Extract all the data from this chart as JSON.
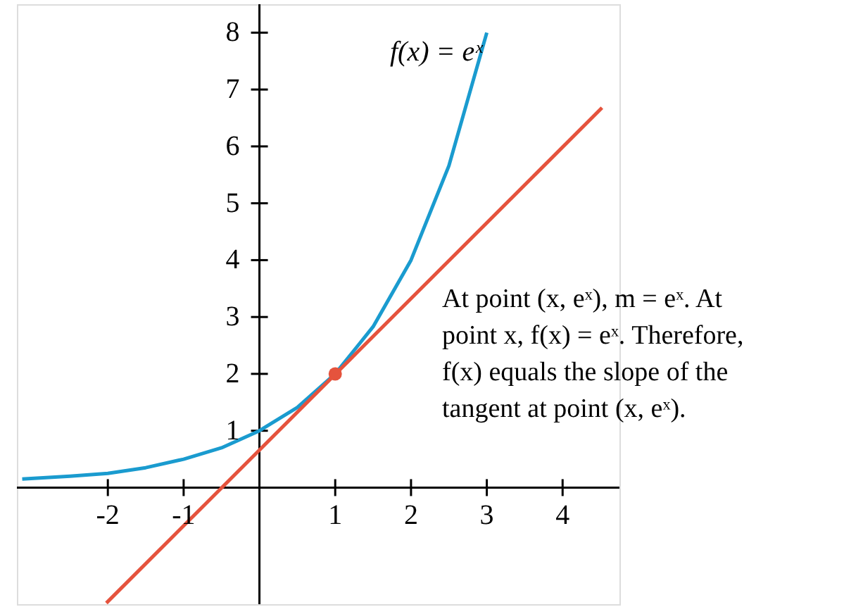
{
  "chart_data": {
    "type": "line",
    "series": [
      {
        "name": "f(x) = eˣ",
        "color": "#1a9bcf",
        "x": [
          -3.13,
          -2.5,
          -2,
          -1.5,
          -1,
          -0.5,
          0,
          0.5,
          1,
          1.5,
          2,
          2.5,
          3
        ],
        "values": [
          0.15,
          0.2,
          0.25,
          0.35,
          0.5,
          0.7,
          1,
          1.41,
          2,
          2.83,
          4,
          5.66,
          8
        ]
      },
      {
        "color": "#e5533d",
        "x": [
          -2.02,
          4.52
        ],
        "values": [
          -2.03,
          6.68
        ]
      },
      {
        "type": "scatter",
        "color": "#e5533d",
        "marker": "circle",
        "x": [
          1
        ],
        "values": [
          2
        ]
      }
    ],
    "xlim": [
      -3.2,
      4.75
    ],
    "ylim": [
      -2.05,
      8.5
    ],
    "xticks": [
      -2,
      -1,
      1,
      2,
      3,
      4
    ],
    "yticks": [
      1,
      2,
      3,
      4,
      5,
      6,
      7,
      8
    ],
    "grid": false,
    "legend": false,
    "line_style": "solid",
    "annotations": [
      "At point (x, eˣ), m = eˣ. At point x, f(x) = eˣ. Therefore, f(x) equals the slope of the tangent at point (x, eˣ)."
    ]
  }
}
